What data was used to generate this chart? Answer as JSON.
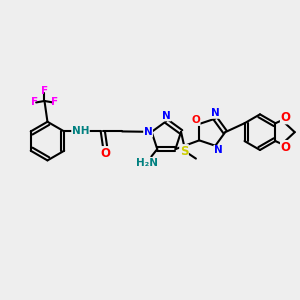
{
  "bg_color": "#eeeeee",
  "fig_width": 3.0,
  "fig_height": 3.0,
  "dpi": 100,
  "bond_color": "#000000",
  "bond_lw": 1.5,
  "colors": {
    "N": "#0000ff",
    "O": "#ff0000",
    "S": "#cccc00",
    "F": "#ff00ff",
    "H": "#008080",
    "C": "#000000"
  },
  "font_size": 7.5
}
